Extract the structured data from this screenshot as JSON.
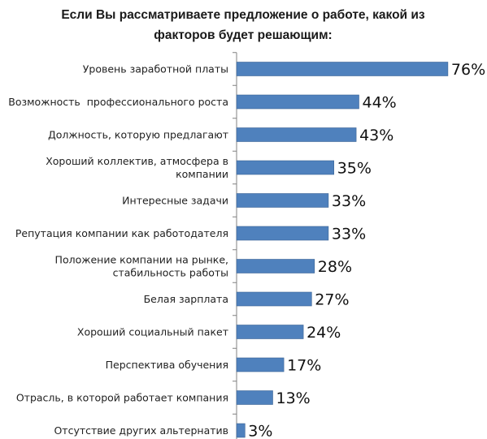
{
  "chart_data": {
    "type": "bar",
    "orientation": "horizontal",
    "title_lines": [
      "Если Вы рассматриваете предложение о работе, какой из",
      "факторов будет решающим:"
    ],
    "categories": [
      [
        "Уровень заработной платы"
      ],
      [
        "Возможность  профессионального роста"
      ],
      [
        "Должность, которую предлагают"
      ],
      [
        "Хороший коллектив, атмосфера в",
        "компании"
      ],
      [
        "Интересные задачи"
      ],
      [
        "Репутация компании как работодателя"
      ],
      [
        "Положение компании на рынке,",
        "стабильность работы"
      ],
      [
        "Белая зарплата"
      ],
      [
        "Хороший социальный пакет"
      ],
      [
        "Перспектива обучения"
      ],
      [
        "Отрасль, в которой работает компания"
      ],
      [
        "Отсутствие других альтернатив"
      ]
    ],
    "values": [
      76,
      44,
      43,
      35,
      33,
      33,
      28,
      27,
      24,
      17,
      13,
      3
    ],
    "value_suffix": "%",
    "xlim": [
      0,
      80
    ],
    "grid": false,
    "legend": "none",
    "bar_color": "#4f81bd",
    "bar_stroke": "#3c6494",
    "axis_color": "#808080"
  }
}
